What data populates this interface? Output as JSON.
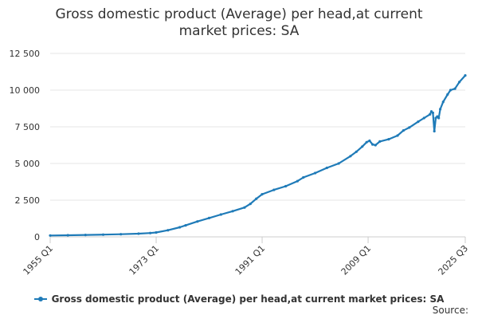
{
  "chart_data": {
    "type": "line",
    "title_lines": [
      "Gross domestic product (Average) per head,at current",
      "market prices: SA"
    ],
    "xlabel": "",
    "ylabel": "",
    "ylim": [
      0,
      12500
    ],
    "y_ticks": [
      0,
      2500,
      5000,
      7500,
      10000,
      12500
    ],
    "y_tick_labels": [
      "0",
      "2 500",
      "5 000",
      "7 500",
      "10 000",
      "12 500"
    ],
    "x_tick_labels": [
      "1955 Q1",
      "1973 Q1",
      "1991 Q1",
      "2009 Q1",
      "2025 Q3"
    ],
    "x_tick_years": [
      1955.0,
      1973.0,
      1991.0,
      2009.0,
      2025.5
    ],
    "grid": "horizontal",
    "legend_position": "bottom",
    "series": [
      {
        "name": "Gross domestic product (Average) per head,at current market prices: SA",
        "color": "#1f7bb8",
        "x": [
          1955.0,
          1958.0,
          1961.0,
          1964.0,
          1967.0,
          1970.0,
          1972.0,
          1973.0,
          1975.0,
          1977.0,
          1978.0,
          1980.0,
          1982.0,
          1984.0,
          1986.0,
          1988.0,
          1989.0,
          1990.0,
          1991.0,
          1993.0,
          1995.0,
          1997.0,
          1998.0,
          2000.0,
          2002.0,
          2004.0,
          2006.0,
          2007.0,
          2008.0,
          2008.75,
          2009.25,
          2009.75,
          2010.25,
          2011.0,
          2012.5,
          2014.0,
          2015.0,
          2016.0,
          2017.5,
          2018.5,
          2019.5,
          2019.75,
          2020.0,
          2020.25,
          2020.5,
          2020.75,
          2021.0,
          2021.25,
          2021.75,
          2022.5,
          2023.0,
          2023.75,
          2024.5,
          2025.5
        ],
        "values": [
          90,
          110,
          130,
          150,
          180,
          220,
          260,
          300,
          450,
          650,
          780,
          1050,
          1280,
          1520,
          1750,
          2000,
          2250,
          2600,
          2900,
          3200,
          3450,
          3800,
          4050,
          4350,
          4700,
          5000,
          5500,
          5800,
          6150,
          6450,
          6550,
          6300,
          6250,
          6500,
          6650,
          6900,
          7250,
          7450,
          7850,
          8100,
          8350,
          8550,
          8450,
          7200,
          8100,
          8200,
          8100,
          8700,
          9200,
          9700,
          10000,
          10100,
          10550,
          11000
        ]
      }
    ],
    "source_label": "Source:"
  }
}
